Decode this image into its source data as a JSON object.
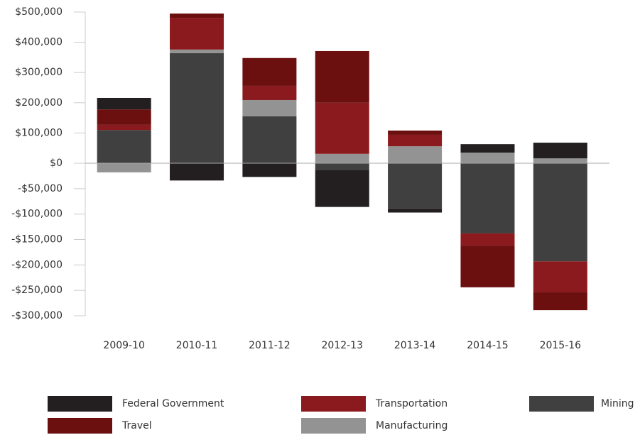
{
  "chart_data": {
    "type": "stacked_bar",
    "categories": [
      "2009-10",
      "2010-11",
      "2011-12",
      "2012-13",
      "2013-14",
      "2014-15",
      "2015-16"
    ],
    "series": [
      {
        "name": "Mining",
        "color": "#404040",
        "values": [
          110000,
          364000,
          155000,
          -13000,
          -89000,
          -138000,
          -193000
        ]
      },
      {
        "name": "Manufacturing",
        "color": "#939393",
        "values": [
          -18000,
          12000,
          54000,
          31000,
          56000,
          35000,
          16000
        ]
      },
      {
        "name": "Transportation",
        "color": "#8b1a1e",
        "values": [
          17000,
          105000,
          47000,
          169000,
          38000,
          -24000,
          -61000
        ]
      },
      {
        "name": "Travel",
        "color": "#6b0f0f",
        "values": [
          51000,
          14000,
          92000,
          171000,
          14000,
          -82000,
          -35000
        ]
      },
      {
        "name": "Federal Government",
        "color": "#231f20",
        "values": [
          38000,
          -34000,
          -27000,
          -73000,
          -8000,
          28000,
          52000
        ]
      }
    ],
    "ylim": [
      -300000,
      500000
    ],
    "yticks": [
      {
        "value": 500000,
        "label": "$500,000"
      },
      {
        "value": 400000,
        "label": "$400,000"
      },
      {
        "value": 300000,
        "label": "$300,000"
      },
      {
        "value": 200000,
        "label": "$200,000"
      },
      {
        "value": 100000,
        "label": "$100,000"
      },
      {
        "value": 0,
        "label": "$0"
      },
      {
        "value": -50000,
        "label": "-$50,000"
      },
      {
        "value": -100000,
        "label": "-$100,000"
      },
      {
        "value": -150000,
        "label": "-$150,000"
      },
      {
        "value": -200000,
        "label": "-$200,000"
      },
      {
        "value": -250000,
        "label": "-$250,000"
      },
      {
        "value": -300000,
        "label": "-$300,000"
      }
    ]
  }
}
